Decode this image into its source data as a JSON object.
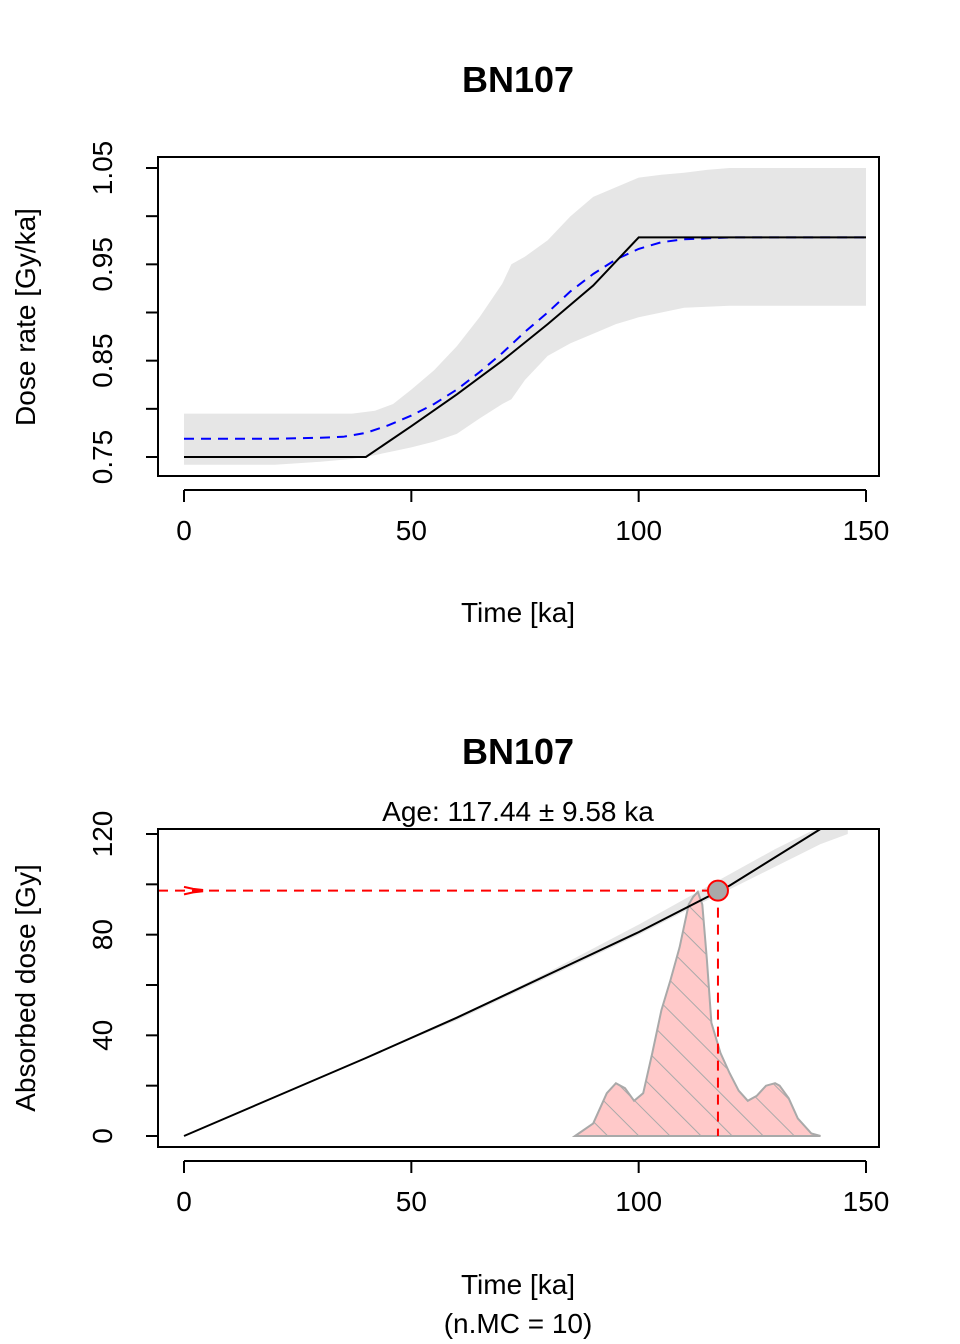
{
  "chart_data": [
    {
      "type": "line",
      "title": "BN107",
      "xlabel": "Time [ka]",
      "ylabel": "Dose rate [Gy/ka]",
      "xlim": [
        0,
        150
      ],
      "ylim": [
        0.75,
        1.05
      ],
      "xticks": [
        0,
        50,
        100,
        150
      ],
      "xtick_labels": [
        "0",
        "50",
        "100",
        "150"
      ],
      "yticks": [
        0.75,
        0.8,
        0.85,
        0.9,
        0.95,
        1.0,
        1.05
      ],
      "ytick_labels": [
        "0.75",
        "",
        "0.85",
        "",
        "0.95",
        "",
        "1.05"
      ],
      "grid": false,
      "series": [
        {
          "role": "band",
          "color": "#e6e6e6",
          "x": [
            0,
            10,
            20,
            30,
            37,
            42,
            46,
            50,
            55,
            60,
            65,
            70,
            72,
            75,
            80,
            85,
            90,
            95,
            100,
            105,
            110,
            115,
            120,
            130,
            140,
            150
          ],
          "upper": [
            0.795,
            0.795,
            0.795,
            0.795,
            0.795,
            0.798,
            0.805,
            0.82,
            0.84,
            0.865,
            0.895,
            0.93,
            0.95,
            0.958,
            0.975,
            1.0,
            1.02,
            1.03,
            1.04,
            1.043,
            1.045,
            1.048,
            1.05,
            1.05,
            1.05,
            1.05
          ],
          "lower": [
            0.742,
            0.742,
            0.742,
            0.745,
            0.748,
            0.752,
            0.756,
            0.76,
            0.766,
            0.774,
            0.79,
            0.805,
            0.81,
            0.83,
            0.855,
            0.868,
            0.878,
            0.888,
            0.895,
            0.9,
            0.905,
            0.906,
            0.907,
            0.907,
            0.907,
            0.907
          ],
          "color_key": "band"
        },
        {
          "role": "mean",
          "color": "#0000ff",
          "dashed": true,
          "x": [
            0,
            20,
            30,
            35,
            40,
            45,
            50,
            55,
            60,
            65,
            70,
            75,
            80,
            85,
            90,
            95,
            100,
            105,
            110,
            120,
            130,
            140,
            150
          ],
          "y": [
            0.769,
            0.769,
            0.77,
            0.771,
            0.775,
            0.783,
            0.793,
            0.805,
            0.82,
            0.838,
            0.858,
            0.88,
            0.9,
            0.922,
            0.94,
            0.955,
            0.966,
            0.973,
            0.976,
            0.978,
            0.978,
            0.978,
            0.978
          ]
        },
        {
          "role": "model",
          "color": "#000000",
          "x": [
            0,
            40,
            50,
            60,
            70,
            80,
            90,
            100,
            150
          ],
          "y": [
            0.75,
            0.75,
            0.782,
            0.815,
            0.85,
            0.888,
            0.928,
            0.978,
            0.978
          ]
        }
      ]
    },
    {
      "type": "line",
      "title": "BN107",
      "subtitle": "Age: 117.44 ± 9.58 ka",
      "xlabel": "Time [ka]",
      "xlabel2": "(n.MC = 10)",
      "ylabel": "Absorbed dose [Gy]",
      "xlim": [
        0,
        150
      ],
      "ylim": [
        0,
        120
      ],
      "xticks": [
        0,
        50,
        100,
        150
      ],
      "xtick_labels": [
        "0",
        "50",
        "100",
        "150"
      ],
      "yticks": [
        0,
        20,
        40,
        60,
        80,
        100,
        120
      ],
      "ytick_labels": [
        "0",
        "",
        "40",
        "",
        "80",
        "",
        "120"
      ],
      "grid": false,
      "dose_band": {
        "color": "#e6e6e6",
        "x": [
          20,
          40,
          60,
          80,
          100,
          112,
          120,
          130,
          140,
          146
        ],
        "upper": [
          16,
          31,
          47,
          65,
          84,
          96,
          104,
          114,
          123,
          128
        ],
        "lower": [
          16,
          31,
          46,
          63,
          80,
          91,
          98,
          107,
          116,
          120
        ]
      },
      "dose_curve": {
        "color": "#000000",
        "x": [
          0,
          20,
          40,
          60,
          80,
          100,
          120,
          140
        ],
        "y": [
          0,
          15.5,
          31,
          47,
          64,
          81,
          99.5,
          122
        ]
      },
      "equivalent_dose": 97.5,
      "age": 117.44,
      "age_error": 9.58,
      "age_color": "#ff0000",
      "point_fill": "#a9a9a9",
      "age_density": {
        "fill": "#ffc9c9",
        "stroke": "#a9a9a9",
        "x": [
          86,
          90,
          93,
          95,
          97,
          99,
          101,
          103,
          105,
          107,
          109,
          111,
          112,
          113,
          114,
          115,
          116,
          118,
          120,
          122,
          124,
          126,
          128,
          130,
          131,
          133,
          135,
          138,
          140
        ],
        "y": [
          0,
          5,
          17,
          21,
          19,
          14,
          17,
          33,
          50,
          62,
          75,
          92,
          95,
          97,
          92,
          70,
          45,
          33,
          25,
          18,
          14,
          16,
          20,
          21,
          20,
          15,
          7,
          1,
          0
        ]
      },
      "dose_density": {
        "stroke": "#ff0000",
        "x": [
          0,
          2,
          4,
          4,
          2,
          0
        ],
        "y": [
          99,
          98.2,
          97.8,
          97.2,
          96.8,
          96
        ]
      }
    }
  ]
}
